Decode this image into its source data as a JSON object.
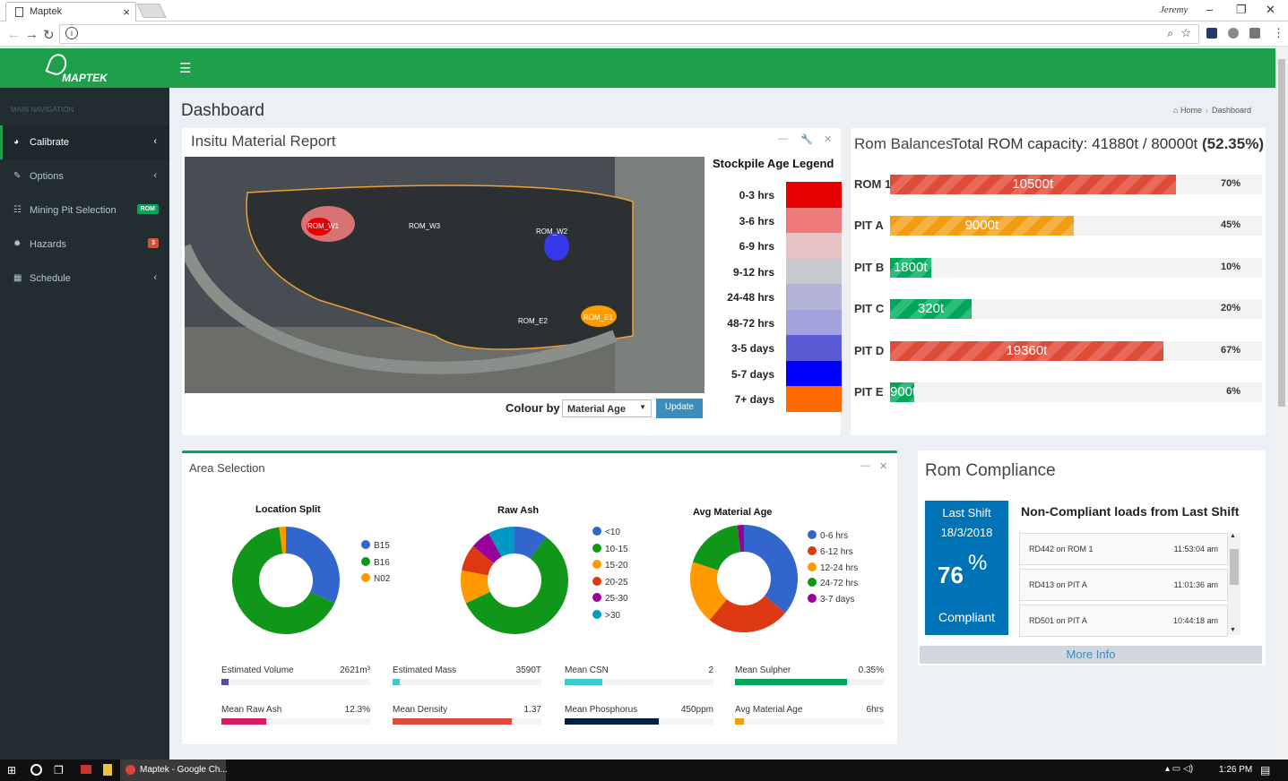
{
  "browser": {
    "tab_title": "Maptek",
    "user": "Jeremy"
  },
  "app": {
    "logo": "MAPTEK",
    "nav_header": "MAIN NAVIGATION",
    "nav": [
      {
        "label": "Calibrate",
        "active": true
      },
      {
        "label": "Options"
      },
      {
        "label": "Mining Pit Selection",
        "badge": "ROM"
      },
      {
        "label": "Hazards",
        "badge": "3"
      },
      {
        "label": "Schedule"
      }
    ],
    "page_title": "Dashboard",
    "breadcrumb": [
      "Home",
      "Dashboard"
    ]
  },
  "insitu": {
    "title": "Insitu Material Report",
    "legend_title": "Stockpile Age Legend",
    "legend": [
      {
        "label": "0-3 hrs",
        "color": "#e60000"
      },
      {
        "label": "3-6 hrs",
        "color": "#ec7a7a"
      },
      {
        "label": "6-9 hrs",
        "color": "#e8c3c3"
      },
      {
        "label": "9-12 hrs",
        "color": "#c8c8d0"
      },
      {
        "label": "24-48 hrs",
        "color": "#b3b3d8"
      },
      {
        "label": "48-72 hrs",
        "color": "#a2a2dd"
      },
      {
        "label": "3-5 days",
        "color": "#5b5bd6"
      },
      {
        "label": "5-7 days",
        "color": "#0000ff"
      },
      {
        "label": "7+ days",
        "color": "#ff6a00"
      }
    ],
    "map_labels": [
      "ROM_W1",
      "ROM_W3",
      "ROM_W2",
      "ROM_E2",
      "ROM_E1"
    ],
    "colour_by_label": "Colour by",
    "colour_by_value": "Material Age",
    "update_button": "Update"
  },
  "rom": {
    "title": "Rom Balances",
    "capacity_text": "Total ROM capacity: 41880t / 80000t",
    "capacity_pct": "(52.35%)",
    "rows": [
      {
        "label": "ROM 1",
        "value": "10500t",
        "pct": "70%",
        "fill": 0.7,
        "color": "red"
      },
      {
        "label": "PIT A",
        "value": "9000t",
        "pct": "45%",
        "fill": 0.45,
        "color": "orange"
      },
      {
        "label": "PIT B",
        "value": "1800t",
        "pct": "10%",
        "fill": 0.1,
        "color": "green"
      },
      {
        "label": "PIT C",
        "value": "320t",
        "pct": "20%",
        "fill": 0.2,
        "color": "green"
      },
      {
        "label": "PIT D",
        "value": "19360t",
        "pct": "67%",
        "fill": 0.67,
        "color": "red"
      },
      {
        "label": "PIT E",
        "value": "900t",
        "pct": "6%",
        "fill": 0.06,
        "color": "green"
      }
    ]
  },
  "area": {
    "title": "Area Selection",
    "charts": [
      {
        "title": "Location Split",
        "legend": [
          "B15",
          "B16",
          "N02"
        ],
        "values": [
          32,
          66,
          2
        ],
        "colors": [
          "#3366cc",
          "#109618",
          "#ff9900"
        ]
      },
      {
        "title": "Raw Ash",
        "legend": [
          "<10",
          "10-15",
          "15-20",
          "20-25",
          "25-30",
          ">30"
        ],
        "values": [
          10,
          58,
          10,
          8,
          6,
          8
        ],
        "colors": [
          "#3366cc",
          "#109618",
          "#ff9900",
          "#dc3912",
          "#990099",
          "#0099c6"
        ],
        "order": [
          0,
          1,
          2,
          3,
          4,
          5
        ]
      },
      {
        "title": "Avg Material Age",
        "legend": [
          "0-6 hrs",
          "6-12 hrs",
          "12-24 hrs",
          "24-72 hrs",
          "3-7 days"
        ],
        "values": [
          36,
          25,
          19,
          18,
          2
        ],
        "colors": [
          "#3366cc",
          "#dc3912",
          "#ff9900",
          "#109618",
          "#990099"
        ]
      }
    ],
    "stats": [
      {
        "label": "Estimated Volume",
        "value": "2621m³",
        "fill": 0.05,
        "color": "#555299"
      },
      {
        "label": "Estimated Mass",
        "value": "3590T",
        "fill": 0.05,
        "color": "#39cccc"
      },
      {
        "label": "Mean CSN",
        "value": "2",
        "fill": 0.25,
        "color": "#39cccc"
      },
      {
        "label": "Mean Sulpher",
        "value": "0.35%",
        "fill": 0.75,
        "color": "#00a65a"
      },
      {
        "label": "Mean Raw Ash",
        "value": "12.3%",
        "fill": 0.3,
        "color": "#d81b60"
      },
      {
        "label": "Mean Density",
        "value": "1.37",
        "fill": 0.8,
        "color": "#dd4b39"
      },
      {
        "label": "Mean Phosphorus",
        "value": "450ppm",
        "fill": 0.63,
        "color": "#001f3f"
      },
      {
        "label": "Avg Material Age",
        "value": "6hrs",
        "fill": 0.06,
        "color": "#f39c12"
      }
    ]
  },
  "compliance": {
    "title": "Rom Compliance",
    "shift_label": "Last Shift",
    "date": "18/3/2018",
    "percent": "76",
    "pct_sign": "%",
    "compliant": "Compliant",
    "list_title": "Non-Compliant loads from Last Shift",
    "items": [
      {
        "text": "RD442 on ROM 1",
        "time": "11:53:04 am"
      },
      {
        "text": "RD413 on PIT A",
        "time": "11:01:36 am"
      },
      {
        "text": "RD501 on PIT A",
        "time": "10:44:18 am"
      }
    ],
    "more_info": "More Info"
  },
  "taskbar": {
    "app": "Maptek - Google Ch...",
    "time": "1:26 PM"
  }
}
